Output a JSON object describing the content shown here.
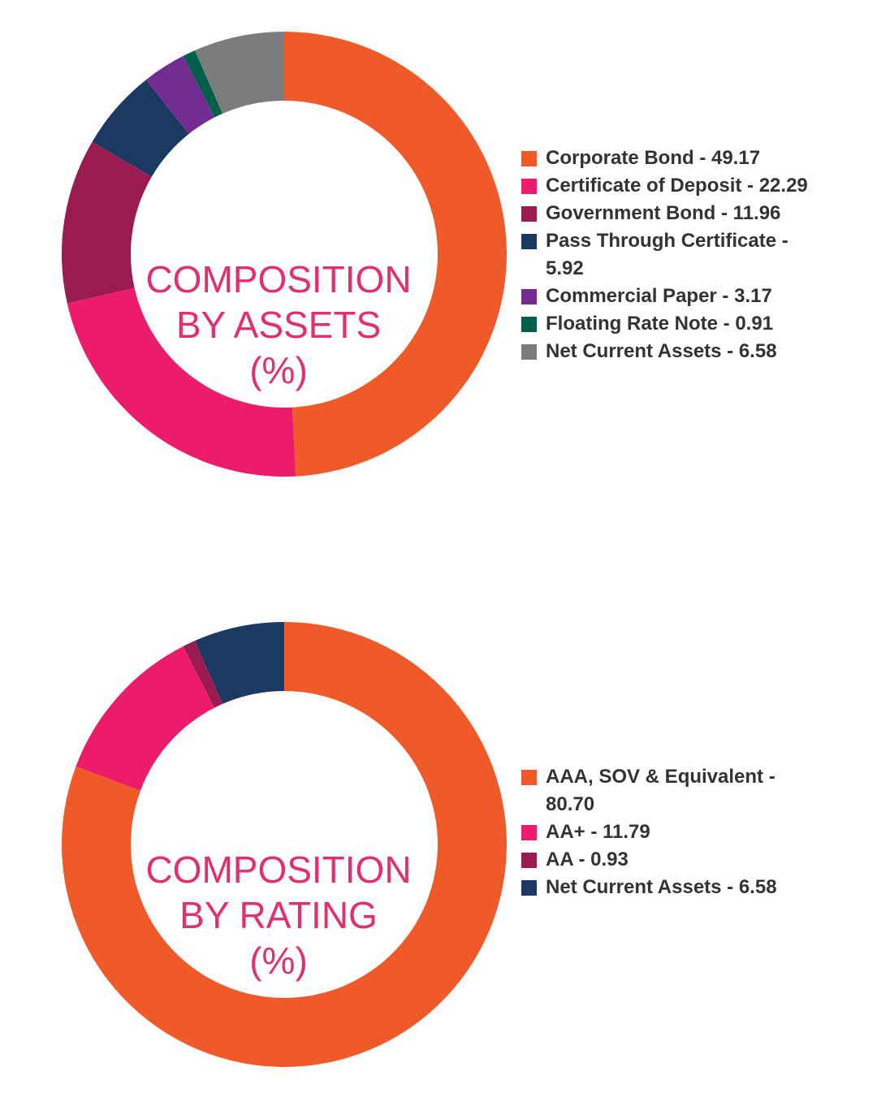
{
  "chart_data": [
    {
      "type": "donut",
      "title_lines": [
        "COMPOSITION",
        "BY ASSETS",
        "(%)"
      ],
      "legend_placement": "right",
      "categories": [
        "Corporate Bond",
        "Certificate of Deposit",
        "Government Bond",
        "Pass Through Certificate",
        "Commercial Paper",
        "Floating Rate Note",
        "Net Current Assets"
      ],
      "values": [
        49.17,
        22.29,
        11.96,
        5.92,
        3.17,
        0.91,
        6.58
      ],
      "legend_labels": [
        "Corporate Bond - 49.17",
        "Certificate of Deposit - 22.29",
        "Government Bond - 11.96",
        "Pass Through Certificate - 5.92",
        "Commercial Paper - 3.17",
        "Floating Rate Note - 0.91",
        "Net Current Assets - 6.58"
      ],
      "colors": [
        "#f05a28",
        "#ec1c6a",
        "#9a1b4f",
        "#1c3961",
        "#732d91",
        "#00604a",
        "#7b7c7e"
      ],
      "title_color": "#e0306e"
    },
    {
      "type": "donut",
      "title_lines": [
        "COMPOSITION",
        "BY RATING",
        "(%)"
      ],
      "legend_placement": "right",
      "categories": [
        "AAA, SOV & Equivalent",
        "AA+",
        "AA",
        "Net Current Assets"
      ],
      "values": [
        80.7,
        11.79,
        0.93,
        6.58
      ],
      "legend_labels": [
        "AAA, SOV & Equivalent - 80.70",
        "AA+ - 11.79",
        "AA - 0.93",
        "Net Current Assets - 6.58"
      ],
      "colors": [
        "#f05a28",
        "#ec1c6a",
        "#9a1b4f",
        "#1c3961"
      ],
      "title_color": "#e0306e"
    }
  ]
}
